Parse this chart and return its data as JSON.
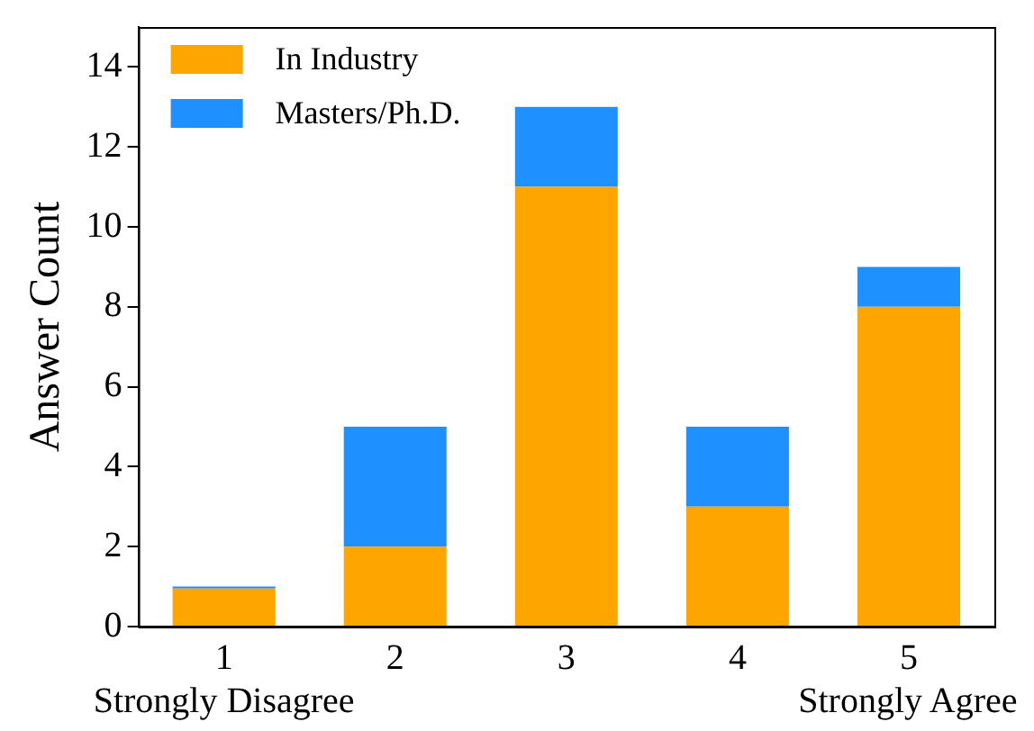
{
  "chart_data": {
    "type": "bar",
    "stacked": true,
    "ylabel": "Answer Count",
    "categories": [
      "1",
      "2",
      "3",
      "4",
      "5"
    ],
    "series": [
      {
        "name": "In Industry",
        "color": "#ffa500",
        "values": [
          0.95,
          2,
          11,
          3,
          8
        ]
      },
      {
        "name": "Masters/Ph.D.",
        "color": "#1e90ff",
        "values": [
          0.05,
          3,
          2,
          2,
          1
        ]
      }
    ],
    "ylim": [
      0,
      15
    ],
    "yticks": [
      0,
      2,
      4,
      6,
      8,
      10,
      12,
      14
    ],
    "grid": false,
    "legend": "top left",
    "annotations": [
      "Strongly Disagree",
      "Strongly Agree"
    ]
  }
}
